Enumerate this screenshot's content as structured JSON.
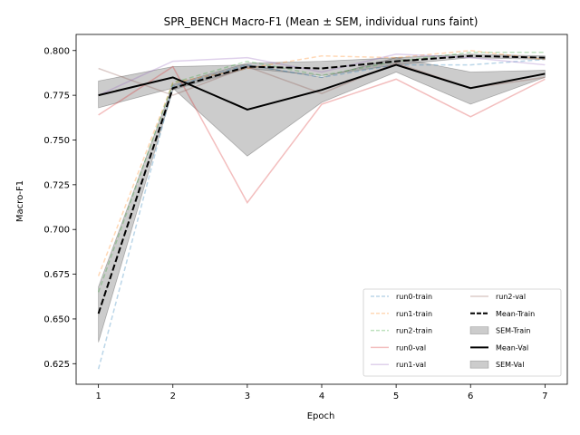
{
  "chart_data": {
    "type": "line",
    "title": "SPR_BENCH Macro-F1 (Mean ± SEM, individual runs faint)",
    "xlabel": "Epoch",
    "ylabel": "Macro-F1",
    "x": [
      1,
      2,
      3,
      4,
      5,
      6,
      7
    ],
    "xlim": [
      0.7,
      7.3
    ],
    "ylim": [
      0.6135,
      0.809
    ],
    "xticks": [
      "1",
      "2",
      "3",
      "4",
      "5",
      "6",
      "7"
    ],
    "yticks": [
      "0.625",
      "0.650",
      "0.675",
      "0.700",
      "0.725",
      "0.750",
      "0.775",
      "0.800"
    ],
    "ytick_values": [
      0.625,
      0.65,
      0.675,
      0.7,
      0.725,
      0.75,
      0.775,
      0.8
    ],
    "grid": false,
    "legend_position": "lower-right",
    "series": [
      {
        "name": "run0-train",
        "style": "dashed",
        "color": "#1f77b4",
        "alpha": 0.3,
        "values": [
          0.622,
          0.78,
          0.792,
          0.785,
          0.792,
          0.792,
          0.795
        ]
      },
      {
        "name": "run1-train",
        "style": "dashed",
        "color": "#ff7f0e",
        "alpha": 0.3,
        "values": [
          0.674,
          0.782,
          0.79,
          0.797,
          0.796,
          0.8,
          0.795
        ]
      },
      {
        "name": "run2-train",
        "style": "dashed",
        "color": "#2ca02c",
        "alpha": 0.3,
        "values": [
          0.665,
          0.782,
          0.794,
          0.786,
          0.794,
          0.799,
          0.799
        ]
      },
      {
        "name": "run0-val",
        "style": "solid",
        "color": "#d62728",
        "alpha": 0.3,
        "values": [
          0.764,
          0.791,
          0.715,
          0.77,
          0.784,
          0.763,
          0.784
        ]
      },
      {
        "name": "run1-val",
        "style": "solid",
        "color": "#9467bd",
        "alpha": 0.3,
        "values": [
          0.775,
          0.794,
          0.796,
          0.788,
          0.798,
          0.796,
          0.792
        ]
      },
      {
        "name": "run2-val",
        "style": "solid",
        "color": "#8c564b",
        "alpha": 0.3,
        "values": [
          0.79,
          0.775,
          0.791,
          0.776,
          0.793,
          0.779,
          0.785
        ]
      },
      {
        "name": "Mean-Train",
        "style": "dashed",
        "color": "#000000",
        "alpha": 1,
        "values": [
          0.653,
          0.779,
          0.791,
          0.79,
          0.794,
          0.797,
          0.796
        ]
      },
      {
        "name": "Mean-Val",
        "style": "solid",
        "color": "#000000",
        "alpha": 1,
        "values": [
          0.775,
          0.785,
          0.767,
          0.778,
          0.792,
          0.779,
          0.787
        ]
      }
    ],
    "bands": [
      {
        "name": "SEM-Train",
        "color": "#808080",
        "alpha": 0.4,
        "lower": [
          0.637,
          0.778,
          0.79,
          0.786,
          0.792,
          0.796,
          0.795
        ],
        "upper": [
          0.668,
          0.781,
          0.793,
          0.794,
          0.796,
          0.798,
          0.797
        ]
      },
      {
        "name": "SEM-Val",
        "color": "#808080",
        "alpha": 0.4,
        "lower": [
          0.768,
          0.779,
          0.741,
          0.771,
          0.788,
          0.77,
          0.785
        ],
        "upper": [
          0.783,
          0.791,
          0.792,
          0.785,
          0.796,
          0.788,
          0.789
        ]
      }
    ],
    "legend": [
      {
        "label": "run0-train",
        "kind": "line",
        "series": 0
      },
      {
        "label": "run1-train",
        "kind": "line",
        "series": 1
      },
      {
        "label": "run2-train",
        "kind": "line",
        "series": 2
      },
      {
        "label": "run0-val",
        "kind": "line",
        "series": 3
      },
      {
        "label": "run1-val",
        "kind": "line",
        "series": 4
      },
      {
        "label": "run2-val",
        "kind": "line",
        "series": 5
      },
      {
        "label": "Mean-Train",
        "kind": "line",
        "series": 6
      },
      {
        "label": "SEM-Train",
        "kind": "band",
        "band": 0
      },
      {
        "label": "Mean-Val",
        "kind": "line",
        "series": 7
      },
      {
        "label": "SEM-Val",
        "kind": "band",
        "band": 1
      }
    ]
  }
}
